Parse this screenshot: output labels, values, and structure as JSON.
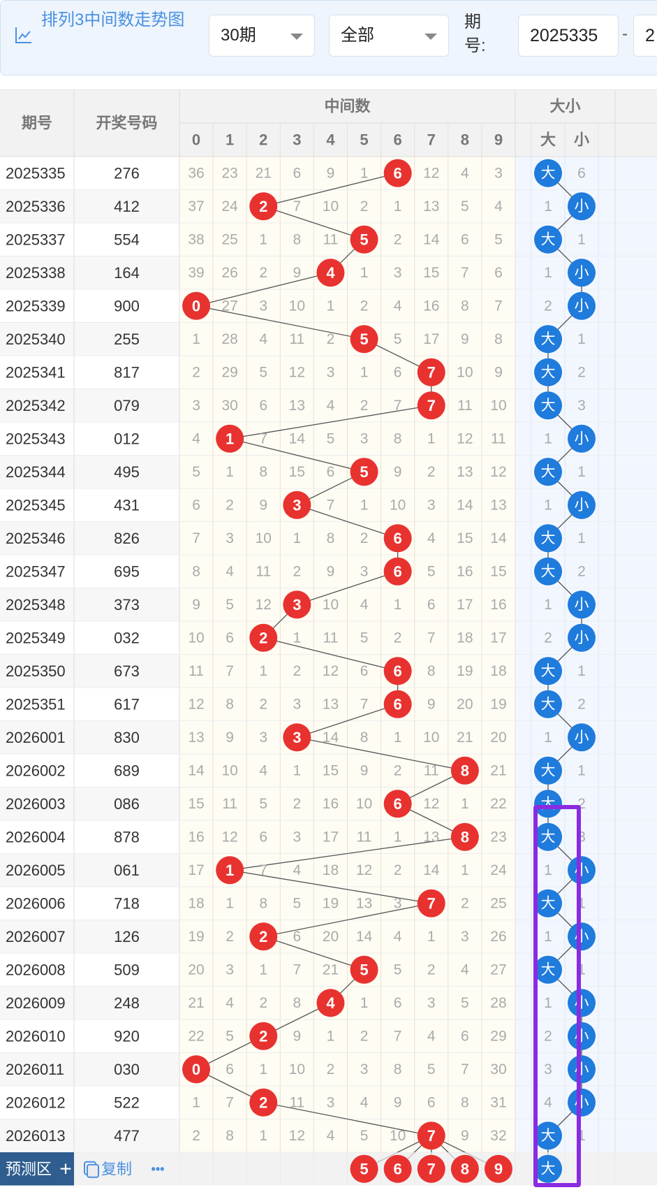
{
  "toolbar": {
    "title": "排列3中间数走势图",
    "period_select": "30期",
    "type_select": "全部",
    "issue_label": "期号:",
    "issue_from": "2025335",
    "dash": "-",
    "issue_to": "2"
  },
  "table": {
    "col_issue": "期号",
    "col_number": "开奖号码",
    "group_middle": "中间数",
    "group_size": "大小",
    "digit_headers": [
      "0",
      "1",
      "2",
      "3",
      "4",
      "5",
      "6",
      "7",
      "8",
      "9"
    ],
    "size_headers": [
      "大",
      "小"
    ],
    "big_label": "大",
    "small_label": "小",
    "rows": [
      {
        "issue": "2025335",
        "number": "276",
        "middle": 6,
        "miss": [
          36,
          23,
          21,
          6,
          9,
          1,
          0,
          12,
          4,
          3
        ],
        "size": "big",
        "size_miss": 6
      },
      {
        "issue": "2025336",
        "number": "412",
        "middle": 2,
        "miss": [
          37,
          24,
          0,
          7,
          10,
          2,
          1,
          13,
          5,
          4
        ],
        "size": "small",
        "size_miss": 1
      },
      {
        "issue": "2025337",
        "number": "554",
        "middle": 5,
        "miss": [
          38,
          25,
          1,
          8,
          11,
          0,
          2,
          14,
          6,
          5
        ],
        "size": "big",
        "size_miss": 1
      },
      {
        "issue": "2025338",
        "number": "164",
        "middle": 4,
        "miss": [
          39,
          26,
          2,
          9,
          0,
          1,
          3,
          15,
          7,
          6
        ],
        "size": "small",
        "size_miss": 1
      },
      {
        "issue": "2025339",
        "number": "900",
        "middle": 0,
        "miss": [
          0,
          27,
          3,
          10,
          1,
          2,
          4,
          16,
          8,
          7
        ],
        "size": "small",
        "size_miss": 2
      },
      {
        "issue": "2025340",
        "number": "255",
        "middle": 5,
        "miss": [
          1,
          28,
          4,
          11,
          2,
          0,
          5,
          17,
          9,
          8
        ],
        "size": "big",
        "size_miss": 1
      },
      {
        "issue": "2025341",
        "number": "817",
        "middle": 7,
        "miss": [
          2,
          29,
          5,
          12,
          3,
          1,
          6,
          0,
          10,
          9
        ],
        "size": "big",
        "size_miss": 2
      },
      {
        "issue": "2025342",
        "number": "079",
        "middle": 7,
        "miss": [
          3,
          30,
          6,
          13,
          4,
          2,
          7,
          0,
          11,
          10
        ],
        "size": "big",
        "size_miss": 3
      },
      {
        "issue": "2025343",
        "number": "012",
        "middle": 1,
        "miss": [
          4,
          0,
          7,
          14,
          5,
          3,
          8,
          1,
          12,
          11
        ],
        "size": "small",
        "size_miss": 1
      },
      {
        "issue": "2025344",
        "number": "495",
        "middle": 5,
        "miss": [
          5,
          1,
          8,
          15,
          6,
          0,
          9,
          2,
          13,
          12
        ],
        "size": "big",
        "size_miss": 1
      },
      {
        "issue": "2025345",
        "number": "431",
        "middle": 3,
        "miss": [
          6,
          2,
          9,
          0,
          7,
          1,
          10,
          3,
          14,
          13
        ],
        "size": "small",
        "size_miss": 1
      },
      {
        "issue": "2025346",
        "number": "826",
        "middle": 6,
        "miss": [
          7,
          3,
          10,
          1,
          8,
          2,
          0,
          4,
          15,
          14
        ],
        "size": "big",
        "size_miss": 1
      },
      {
        "issue": "2025347",
        "number": "695",
        "middle": 6,
        "miss": [
          8,
          4,
          11,
          2,
          9,
          3,
          0,
          5,
          16,
          15
        ],
        "size": "big",
        "size_miss": 2
      },
      {
        "issue": "2025348",
        "number": "373",
        "middle": 3,
        "miss": [
          9,
          5,
          12,
          0,
          10,
          4,
          1,
          6,
          17,
          16
        ],
        "size": "small",
        "size_miss": 1
      },
      {
        "issue": "2025349",
        "number": "032",
        "middle": 2,
        "miss": [
          10,
          6,
          0,
          1,
          11,
          5,
          2,
          7,
          18,
          17
        ],
        "size": "small",
        "size_miss": 2
      },
      {
        "issue": "2025350",
        "number": "673",
        "middle": 6,
        "miss": [
          11,
          7,
          1,
          2,
          12,
          6,
          0,
          8,
          19,
          18
        ],
        "size": "big",
        "size_miss": 1
      },
      {
        "issue": "2025351",
        "number": "617",
        "middle": 6,
        "miss": [
          12,
          8,
          2,
          3,
          13,
          7,
          0,
          9,
          20,
          19
        ],
        "size": "big",
        "size_miss": 2
      },
      {
        "issue": "2026001",
        "number": "830",
        "middle": 3,
        "miss": [
          13,
          9,
          3,
          0,
          14,
          8,
          1,
          10,
          21,
          20
        ],
        "size": "small",
        "size_miss": 1
      },
      {
        "issue": "2026002",
        "number": "689",
        "middle": 8,
        "miss": [
          14,
          10,
          4,
          1,
          15,
          9,
          2,
          11,
          0,
          21
        ],
        "size": "big",
        "size_miss": 1
      },
      {
        "issue": "2026003",
        "number": "086",
        "middle": 6,
        "miss": [
          15,
          11,
          5,
          2,
          16,
          10,
          0,
          12,
          1,
          22
        ],
        "size": "big",
        "size_miss": 2
      },
      {
        "issue": "2026004",
        "number": "878",
        "middle": 8,
        "miss": [
          16,
          12,
          6,
          3,
          17,
          11,
          1,
          13,
          0,
          23
        ],
        "size": "big",
        "size_miss": 3
      },
      {
        "issue": "2026005",
        "number": "061",
        "middle": 1,
        "miss": [
          17,
          0,
          7,
          4,
          18,
          12,
          2,
          14,
          1,
          24
        ],
        "size": "small",
        "size_miss": 1
      },
      {
        "issue": "2026006",
        "number": "718",
        "middle": 7,
        "miss": [
          18,
          1,
          8,
          5,
          19,
          13,
          3,
          0,
          2,
          25
        ],
        "size": "big",
        "size_miss": 1
      },
      {
        "issue": "2026007",
        "number": "126",
        "middle": 2,
        "miss": [
          19,
          2,
          0,
          6,
          20,
          14,
          4,
          1,
          3,
          26
        ],
        "size": "small",
        "size_miss": 1
      },
      {
        "issue": "2026008",
        "number": "509",
        "middle": 5,
        "miss": [
          20,
          3,
          1,
          7,
          21,
          0,
          5,
          2,
          4,
          27
        ],
        "size": "big",
        "size_miss": 1
      },
      {
        "issue": "2026009",
        "number": "248",
        "middle": 4,
        "miss": [
          21,
          4,
          2,
          8,
          0,
          1,
          6,
          3,
          5,
          28
        ],
        "size": "small",
        "size_miss": 1
      },
      {
        "issue": "2026010",
        "number": "920",
        "middle": 2,
        "miss": [
          22,
          5,
          0,
          9,
          1,
          2,
          7,
          4,
          6,
          29
        ],
        "size": "small",
        "size_miss": 2
      },
      {
        "issue": "2026011",
        "number": "030",
        "middle": 0,
        "miss": [
          0,
          6,
          1,
          10,
          2,
          3,
          8,
          5,
          7,
          30
        ],
        "size": "small",
        "size_miss": 3
      },
      {
        "issue": "2026012",
        "number": "522",
        "middle": 2,
        "miss": [
          1,
          7,
          0,
          11,
          3,
          4,
          9,
          6,
          8,
          31
        ],
        "size": "small",
        "size_miss": 4
      },
      {
        "issue": "2026013",
        "number": "477",
        "middle": 7,
        "miss": [
          2,
          8,
          1,
          12,
          4,
          5,
          10,
          0,
          9,
          32
        ],
        "size": "big",
        "size_miss": 1
      }
    ],
    "forecast": {
      "label": "预测区",
      "plus": "+",
      "copy_label": "复制",
      "more": "•••",
      "balls": [
        5,
        6,
        7,
        8,
        9
      ],
      "size_ball": "大"
    }
  },
  "colors": {
    "red_ball": "#e8322f",
    "blue_ball": "#1f7bdc",
    "header_bg": "#f3f3f3",
    "forecast_bg": "#2f5d8f",
    "highlight_box": "#8a2be2",
    "link_blue": "#4a90e2"
  }
}
